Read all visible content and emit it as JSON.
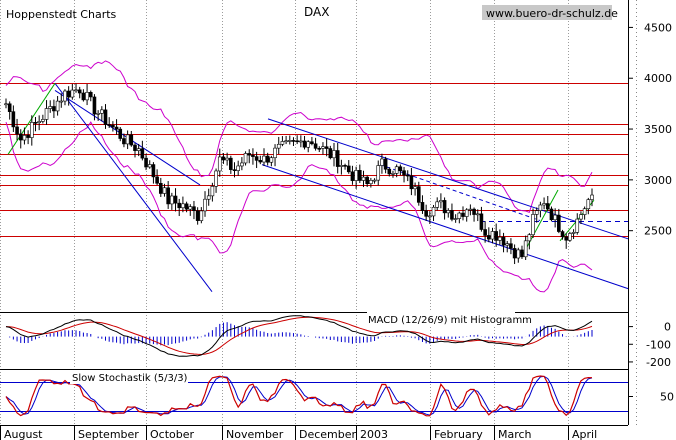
{
  "chart_data": {
    "type": "candlestick",
    "title": "DAX",
    "publisher": "Hoppenstedt Charts",
    "source": "www.buero-dr-schulz.de",
    "months": [
      "August",
      "September",
      "October",
      "November",
      "December",
      "2003",
      "February",
      "March",
      "April"
    ],
    "price_panel": {
      "y_ticks": [
        2500,
        3000,
        3500,
        4000,
        4500
      ],
      "ylim": [
        1700,
        4750
      ],
      "support_resistance_levels": [
        3950,
        3550,
        3450,
        3250,
        3050,
        2950,
        2700,
        2450
      ],
      "dashed_level": 2600,
      "anchor_points": [
        {
          "t": 0,
          "v": 3750
        },
        {
          "t": 4,
          "v": 3400
        },
        {
          "t": 8,
          "v": 3550
        },
        {
          "t": 12,
          "v": 3700
        },
        {
          "t": 16,
          "v": 3850
        },
        {
          "t": 20,
          "v": 3900
        },
        {
          "t": 24,
          "v": 3700
        },
        {
          "t": 28,
          "v": 3550
        },
        {
          "t": 32,
          "v": 3400
        },
        {
          "t": 36,
          "v": 3300
        },
        {
          "t": 40,
          "v": 3050
        },
        {
          "t": 44,
          "v": 2800
        },
        {
          "t": 48,
          "v": 2750
        },
        {
          "t": 52,
          "v": 2650
        },
        {
          "t": 55,
          "v": 2900
        },
        {
          "t": 58,
          "v": 3200
        },
        {
          "t": 62,
          "v": 3100
        },
        {
          "t": 66,
          "v": 3250
        },
        {
          "t": 70,
          "v": 3200
        },
        {
          "t": 74,
          "v": 3300
        },
        {
          "t": 78,
          "v": 3350
        },
        {
          "t": 82,
          "v": 3400
        },
        {
          "t": 86,
          "v": 3300
        },
        {
          "t": 90,
          "v": 3200
        },
        {
          "t": 94,
          "v": 3050
        },
        {
          "t": 98,
          "v": 2950
        },
        {
          "t": 102,
          "v": 3150
        },
        {
          "t": 106,
          "v": 3100
        },
        {
          "t": 110,
          "v": 2950
        },
        {
          "t": 114,
          "v": 2700
        },
        {
          "t": 118,
          "v": 2750
        },
        {
          "t": 122,
          "v": 2650
        },
        {
          "t": 126,
          "v": 2750
        },
        {
          "t": 130,
          "v": 2500
        },
        {
          "t": 134,
          "v": 2450
        },
        {
          "t": 138,
          "v": 2300
        },
        {
          "t": 140,
          "v": 2250
        },
        {
          "t": 143,
          "v": 2600
        },
        {
          "t": 146,
          "v": 2800
        },
        {
          "t": 149,
          "v": 2600
        },
        {
          "t": 152,
          "v": 2450
        },
        {
          "t": 155,
          "v": 2600
        },
        {
          "t": 158,
          "v": 2800
        }
      ]
    },
    "macd_panel": {
      "label": "MACD (12/26/9) mit Histogramm",
      "y_ticks": [
        0,
        -100,
        -200
      ],
      "ylim": [
        -240,
        60
      ]
    },
    "stochastic_panel": {
      "label": "Slow Stochastik (5/3/3)",
      "y_ticks": [
        50
      ],
      "reference_levels": [
        80,
        20
      ],
      "ylim": [
        0,
        100
      ]
    }
  }
}
